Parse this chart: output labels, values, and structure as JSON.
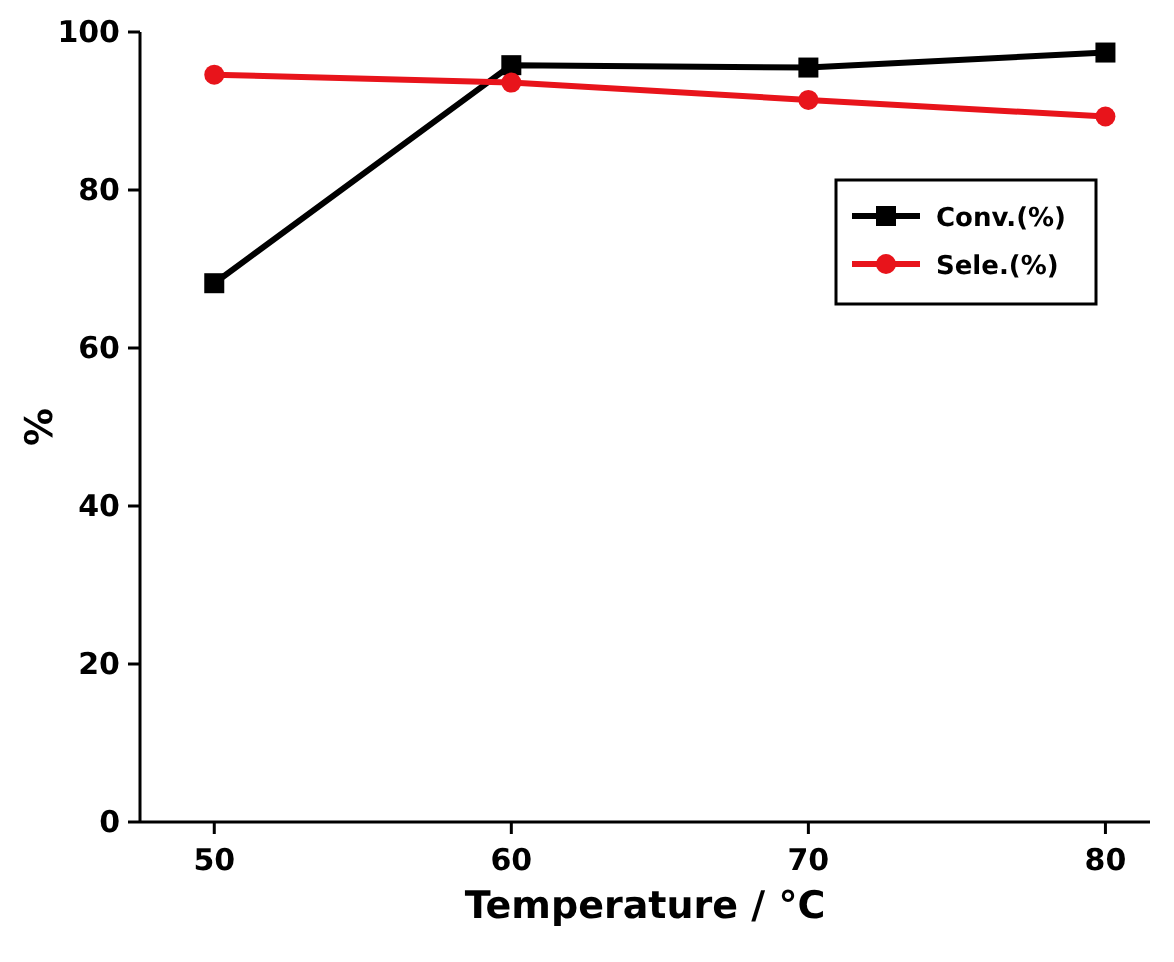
{
  "chart_data": {
    "type": "line",
    "xlabel": "Temperature / °C",
    "ylabel": "%",
    "x": [
      50,
      60,
      70,
      80
    ],
    "series": [
      {
        "name": "Conv.(%)",
        "color": "#000000",
        "marker": "square",
        "values": [
          68.2,
          95.8,
          95.5,
          97.4
        ]
      },
      {
        "name": "Sele.(%)",
        "color": "#e8141b",
        "marker": "circle",
        "values": [
          94.6,
          93.6,
          91.4,
          89.3
        ]
      }
    ],
    "xlim": [
      47.5,
      81.5
    ],
    "xticks": [
      50,
      60,
      70,
      80
    ],
    "ylim": [
      0,
      100
    ],
    "yticks": [
      0,
      20,
      40,
      60,
      80,
      100
    ],
    "legend": "top right",
    "grid": false,
    "line_style": "solid"
  }
}
